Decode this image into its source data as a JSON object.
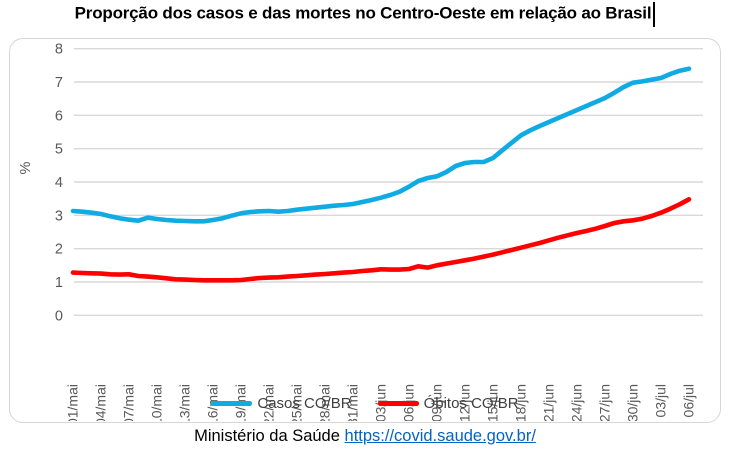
{
  "title": "Proporção dos casos e das mortes no Centro-Oeste em relação ao Brasil",
  "footer": {
    "source_text": "Ministério da Saúde",
    "link_text": "https://covid.saude.gov.br/"
  },
  "colors": {
    "grid": "#d9d9d9",
    "axis_text": "#595959",
    "casos": "#10abe2",
    "obitos": "#fe0000",
    "link": "#0563c1",
    "legend_text": "#3f3f3f"
  },
  "chart_data": {
    "type": "line",
    "title": "Proporção dos casos e das mortes no Centro-Oeste em relação ao Brasil",
    "xlabel": "",
    "ylabel": "%",
    "ylim": [
      0,
      8
    ],
    "yticks": [
      0,
      1,
      2,
      3,
      4,
      5,
      6,
      7,
      8
    ],
    "grid": true,
    "legend_position": "bottom",
    "tick_every_days": 3,
    "tick_labels": [
      "01/mai",
      "04/mai",
      "07/mai",
      "10/mai",
      "13/mai",
      "16/mai",
      "19/mai",
      "22/mai",
      "25/mai",
      "28/mai",
      "31/mai",
      "03/jun",
      "06/jun",
      "09/jun",
      "12/jun",
      "15/jun",
      "18/jun",
      "21/jun",
      "24/jun",
      "27/jun",
      "30/jun",
      "03/jul",
      "06/jul"
    ],
    "x": [
      "01/mai",
      "02/mai",
      "03/mai",
      "04/mai",
      "05/mai",
      "06/mai",
      "07/mai",
      "08/mai",
      "09/mai",
      "10/mai",
      "11/mai",
      "12/mai",
      "13/mai",
      "14/mai",
      "15/mai",
      "16/mai",
      "17/mai",
      "18/mai",
      "19/mai",
      "20/mai",
      "21/mai",
      "22/mai",
      "23/mai",
      "24/mai",
      "25/mai",
      "26/mai",
      "27/mai",
      "28/mai",
      "29/mai",
      "30/mai",
      "31/mai",
      "01/jun",
      "02/jun",
      "03/jun",
      "04/jun",
      "05/jun",
      "06/jun",
      "07/jun",
      "08/jun",
      "09/jun",
      "10/jun",
      "11/jun",
      "12/jun",
      "13/jun",
      "14/jun",
      "15/jun",
      "16/jun",
      "17/jun",
      "18/jun",
      "19/jun",
      "20/jun",
      "21/jun",
      "22/jun",
      "23/jun",
      "24/jun",
      "25/jun",
      "26/jun",
      "27/jun",
      "28/jun",
      "29/jun",
      "30/jun",
      "01/jul",
      "02/jul",
      "03/jul",
      "04/jul",
      "05/jul",
      "06/jul"
    ],
    "series": [
      {
        "name": "Casos CO/BR",
        "color": "#10abe2",
        "values": [
          3.13,
          3.11,
          3.08,
          3.04,
          2.97,
          2.91,
          2.87,
          2.84,
          2.93,
          2.89,
          2.86,
          2.84,
          2.83,
          2.82,
          2.82,
          2.86,
          2.91,
          2.99,
          3.06,
          3.1,
          3.12,
          3.13,
          3.11,
          3.13,
          3.17,
          3.2,
          3.23,
          3.26,
          3.29,
          3.31,
          3.34,
          3.4,
          3.46,
          3.53,
          3.61,
          3.71,
          3.86,
          4.03,
          4.12,
          4.17,
          4.3,
          4.48,
          4.57,
          4.6,
          4.6,
          4.72,
          4.95,
          5.18,
          5.4,
          5.55,
          5.68,
          5.8,
          5.92,
          6.04,
          6.16,
          6.28,
          6.4,
          6.52,
          6.68,
          6.85,
          6.98,
          7.02,
          7.07,
          7.12,
          7.24,
          7.34,
          7.4
        ]
      },
      {
        "name": "Óbitos CO/BR",
        "color": "#fe0000",
        "values": [
          1.28,
          1.27,
          1.26,
          1.25,
          1.23,
          1.22,
          1.23,
          1.18,
          1.16,
          1.14,
          1.11,
          1.08,
          1.07,
          1.06,
          1.05,
          1.05,
          1.05,
          1.05,
          1.06,
          1.09,
          1.12,
          1.13,
          1.14,
          1.16,
          1.18,
          1.2,
          1.22,
          1.24,
          1.26,
          1.28,
          1.3,
          1.33,
          1.35,
          1.38,
          1.37,
          1.37,
          1.39,
          1.47,
          1.43,
          1.5,
          1.55,
          1.6,
          1.65,
          1.7,
          1.76,
          1.82,
          1.89,
          1.96,
          2.03,
          2.1,
          2.17,
          2.25,
          2.33,
          2.4,
          2.47,
          2.53,
          2.6,
          2.68,
          2.77,
          2.82,
          2.85,
          2.9,
          2.98,
          3.08,
          3.2,
          3.33,
          3.48
        ]
      }
    ]
  }
}
